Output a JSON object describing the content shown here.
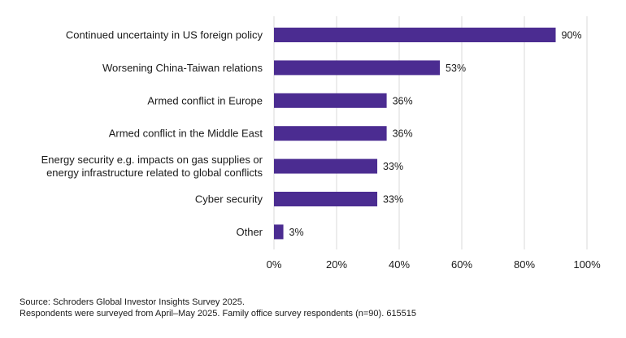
{
  "chart_data": {
    "type": "bar",
    "orientation": "horizontal",
    "categories": [
      [
        "Continued uncertainty in US foreign policy"
      ],
      [
        "Worsening China-Taiwan relations"
      ],
      [
        "Armed conflict in Europe"
      ],
      [
        "Armed conflict in the Middle East"
      ],
      [
        "Energy security e.g. impacts on gas supplies or",
        "energy infrastructure related to global conflicts"
      ],
      [
        "Cyber security"
      ],
      [
        "Other"
      ]
    ],
    "values": [
      90,
      53,
      36,
      36,
      33,
      33,
      3
    ],
    "value_labels": [
      "90%",
      "53%",
      "36%",
      "36%",
      "33%",
      "33%",
      "3%"
    ],
    "xlim": [
      0,
      100
    ],
    "xticks": [
      0,
      20,
      40,
      60,
      80,
      100
    ],
    "xtick_labels": [
      "0%",
      "20%",
      "40%",
      "60%",
      "80%",
      "100%"
    ],
    "grid": "vertical",
    "bar_color": "#4b2c91",
    "grid_color": "#d9d9d9"
  },
  "footer": {
    "source": "Source: Schroders Global Investor Insights Survey 2025.",
    "note": "Respondents were surveyed from April–May 2025. Family office survey respondents (n=90). 615515"
  }
}
